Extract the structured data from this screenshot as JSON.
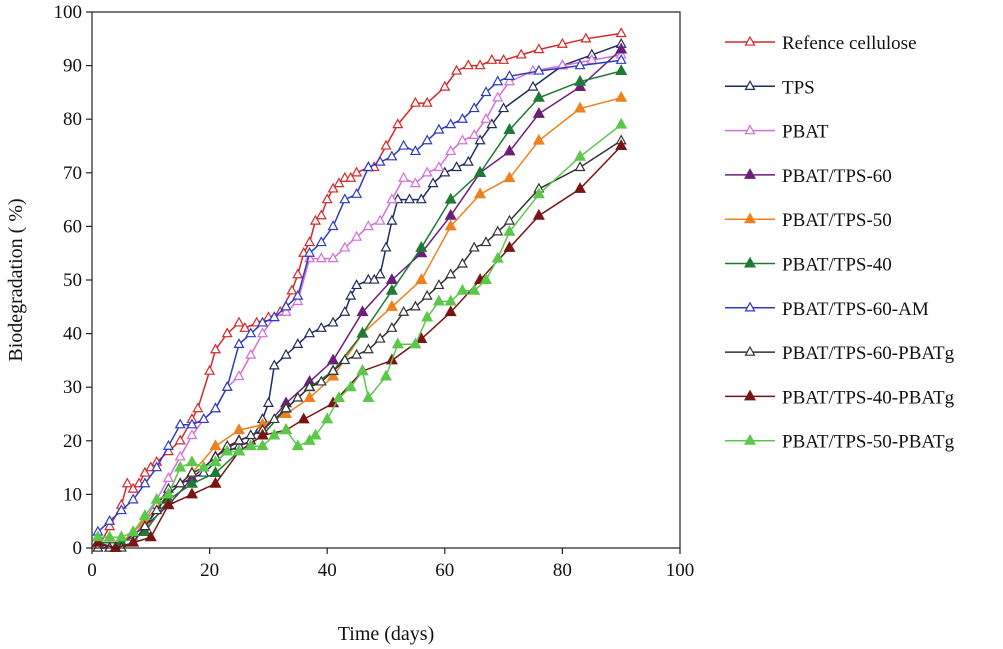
{
  "chart_data": {
    "type": "line",
    "title": "",
    "xlabel": "Time (days)",
    "ylabel": "Biodegradation ( %)",
    "xlim": [
      0,
      100
    ],
    "ylim": [
      0,
      100
    ],
    "xticks": [
      0,
      20,
      40,
      60,
      80,
      100
    ],
    "yticks": [
      0,
      10,
      20,
      30,
      40,
      50,
      60,
      70,
      80,
      90,
      100
    ],
    "grid": false,
    "legend_position": "right",
    "series": [
      {
        "name": "Refence cellulose",
        "color": "#d62728",
        "marker": "triangle-open",
        "x": [
          1,
          3,
          5,
          6,
          7,
          8,
          9,
          10,
          11,
          13,
          15,
          17,
          18,
          20,
          21,
          23,
          25,
          26,
          28,
          30,
          32,
          34,
          35,
          36,
          37,
          38,
          39,
          40,
          41,
          42,
          43,
          44,
          45,
          47,
          48,
          50,
          52,
          55,
          57,
          60,
          62,
          64,
          66,
          68,
          70,
          73,
          76,
          80,
          84,
          90
        ],
        "y": [
          0,
          4,
          8,
          12,
          11,
          12,
          14,
          15,
          16,
          18,
          20,
          24,
          26,
          33,
          37,
          40,
          42,
          41,
          42,
          43,
          44,
          48,
          51,
          55,
          57,
          61,
          62,
          65,
          67,
          68,
          69,
          69,
          70,
          71,
          71,
          75,
          79,
          83,
          83,
          86,
          89,
          90,
          90,
          91,
          91,
          92,
          93,
          94,
          95,
          96
        ]
      },
      {
        "name": "TPS",
        "color": "#1f2d5c",
        "marker": "triangle-open",
        "x": [
          1,
          3,
          5,
          7,
          9,
          11,
          13,
          15,
          17,
          19,
          21,
          23,
          25,
          27,
          29,
          30,
          31,
          33,
          35,
          37,
          39,
          41,
          43,
          44,
          45,
          47,
          48,
          49,
          50,
          51,
          52,
          54,
          56,
          58,
          60,
          62,
          64,
          66,
          68,
          70,
          75,
          80,
          85,
          90
        ],
        "y": [
          1,
          0,
          1,
          2,
          3,
          8,
          11,
          12,
          13,
          14,
          16,
          18,
          19,
          20,
          24,
          27,
          34,
          36,
          38,
          40,
          41,
          42,
          44,
          47,
          49,
          50,
          50,
          51,
          56,
          61,
          65,
          65,
          65,
          68,
          70,
          71,
          72,
          76,
          79,
          82,
          86,
          90,
          92,
          94
        ]
      },
      {
        "name": "PBAT",
        "color": "#d36fd6",
        "marker": "triangle-open",
        "x": [
          1,
          3,
          5,
          7,
          9,
          11,
          13,
          15,
          17,
          19,
          21,
          23,
          25,
          27,
          29,
          31,
          33,
          35,
          37,
          39,
          41,
          43,
          45,
          47,
          49,
          51,
          53,
          55,
          57,
          59,
          61,
          63,
          65,
          67,
          69,
          71,
          75,
          80,
          85,
          90
        ],
        "y": [
          0,
          0,
          1,
          2,
          5,
          9,
          13,
          17,
          21,
          24,
          26,
          30,
          32,
          36,
          40,
          43,
          44,
          46,
          54,
          54,
          54,
          56,
          58,
          60,
          61,
          65,
          69,
          68,
          70,
          71,
          74,
          76,
          77,
          80,
          84,
          87,
          89,
          90,
          91,
          92
        ]
      },
      {
        "name": "PBAT/TPS-60",
        "color": "#6a1f7a",
        "marker": "triangle-filled",
        "x": [
          1,
          5,
          9,
          13,
          17,
          21,
          25,
          29,
          33,
          37,
          41,
          46,
          51,
          56,
          61,
          66,
          71,
          76,
          83,
          90
        ],
        "y": [
          1,
          1,
          4,
          8,
          13,
          17,
          20,
          22,
          27,
          31,
          35,
          44,
          50,
          55,
          62,
          70,
          74,
          81,
          86,
          93
        ]
      },
      {
        "name": "PBAT/TPS-50",
        "color": "#f07f1e",
        "marker": "triangle-filled",
        "x": [
          1,
          5,
          9,
          13,
          17,
          21,
          25,
          29,
          33,
          37,
          41,
          46,
          51,
          56,
          61,
          66,
          71,
          76,
          83,
          90
        ],
        "y": [
          1,
          1,
          5,
          10,
          14,
          19,
          22,
          23,
          25,
          28,
          32,
          40,
          45,
          50,
          60,
          66,
          69,
          76,
          82,
          84
        ]
      },
      {
        "name": "PBAT/TPS-40",
        "color": "#1e7a34",
        "marker": "triangle-filled",
        "x": [
          1,
          5,
          9,
          13,
          17,
          21,
          25,
          29,
          33,
          37,
          41,
          46,
          51,
          56,
          61,
          66,
          71,
          76,
          83,
          90
        ],
        "y": [
          1,
          1,
          3,
          9,
          12,
          14,
          18,
          21,
          26,
          30,
          33,
          40,
          48,
          56,
          65,
          70,
          78,
          84,
          87,
          89
        ]
      },
      {
        "name": "PBAT/TPS-60-AM",
        "color": "#2c3cc4",
        "marker": "triangle-open",
        "x": [
          1,
          3,
          5,
          7,
          9,
          11,
          13,
          15,
          17,
          19,
          21,
          23,
          25,
          27,
          29,
          31,
          33,
          35,
          37,
          39,
          41,
          43,
          45,
          47,
          49,
          51,
          53,
          55,
          57,
          59,
          61,
          63,
          65,
          67,
          69,
          71,
          76,
          83,
          90
        ],
        "y": [
          3,
          5,
          7,
          9,
          12,
          15,
          19,
          23,
          23,
          24,
          26,
          30,
          38,
          40,
          42,
          43,
          45,
          47,
          55,
          57,
          60,
          65,
          66,
          71,
          72,
          73,
          75,
          74,
          76,
          78,
          79,
          80,
          82,
          85,
          87,
          88,
          89,
          90,
          91
        ]
      },
      {
        "name": "PBAT/TPS-60-PBATg",
        "color": "#333333",
        "marker": "triangle-open",
        "x": [
          1,
          3,
          5,
          7,
          9,
          11,
          13,
          15,
          17,
          19,
          21,
          23,
          25,
          27,
          29,
          31,
          33,
          35,
          37,
          39,
          41,
          43,
          45,
          47,
          49,
          51,
          53,
          55,
          57,
          59,
          61,
          63,
          65,
          67,
          69,
          71,
          76,
          83,
          90
        ],
        "y": [
          0,
          0,
          0,
          1,
          4,
          7,
          10,
          12,
          14,
          15,
          17,
          19,
          20,
          21,
          22,
          24,
          26,
          28,
          30,
          31,
          33,
          35,
          36,
          37,
          39,
          41,
          44,
          45,
          47,
          49,
          51,
          53,
          56,
          57,
          59,
          61,
          67,
          71,
          76
        ]
      },
      {
        "name": "PBAT/TPS-40-PBATg",
        "color": "#7a1414",
        "marker": "triangle-filled",
        "x": [
          1,
          4,
          7,
          10,
          13,
          17,
          21,
          25,
          29,
          33,
          36,
          41,
          46,
          51,
          56,
          61,
          66,
          71,
          76,
          83,
          90
        ],
        "y": [
          1,
          0,
          1,
          2,
          8,
          10,
          12,
          18,
          21,
          22,
          24,
          27,
          33,
          35,
          39,
          44,
          50,
          56,
          62,
          67,
          75
        ]
      },
      {
        "name": "PBAT/TPS-50-PBATg",
        "color": "#5cc84a",
        "marker": "triangle-filled",
        "x": [
          1,
          3,
          5,
          7,
          9,
          11,
          13,
          15,
          17,
          19,
          21,
          23,
          25,
          27,
          29,
          31,
          33,
          35,
          37,
          38,
          40,
          42,
          44,
          46,
          47,
          50,
          52,
          55,
          57,
          59,
          61,
          63,
          65,
          67,
          69,
          71,
          76,
          83,
          90
        ],
        "y": [
          2,
          2,
          2,
          3,
          6,
          9,
          10,
          15,
          16,
          15,
          16,
          18,
          18,
          19,
          19,
          21,
          22,
          19,
          20,
          21,
          24,
          28,
          30,
          33,
          28,
          32,
          38,
          38,
          43,
          46,
          46,
          48,
          48,
          50,
          54,
          59,
          66,
          73,
          79
        ]
      }
    ]
  }
}
